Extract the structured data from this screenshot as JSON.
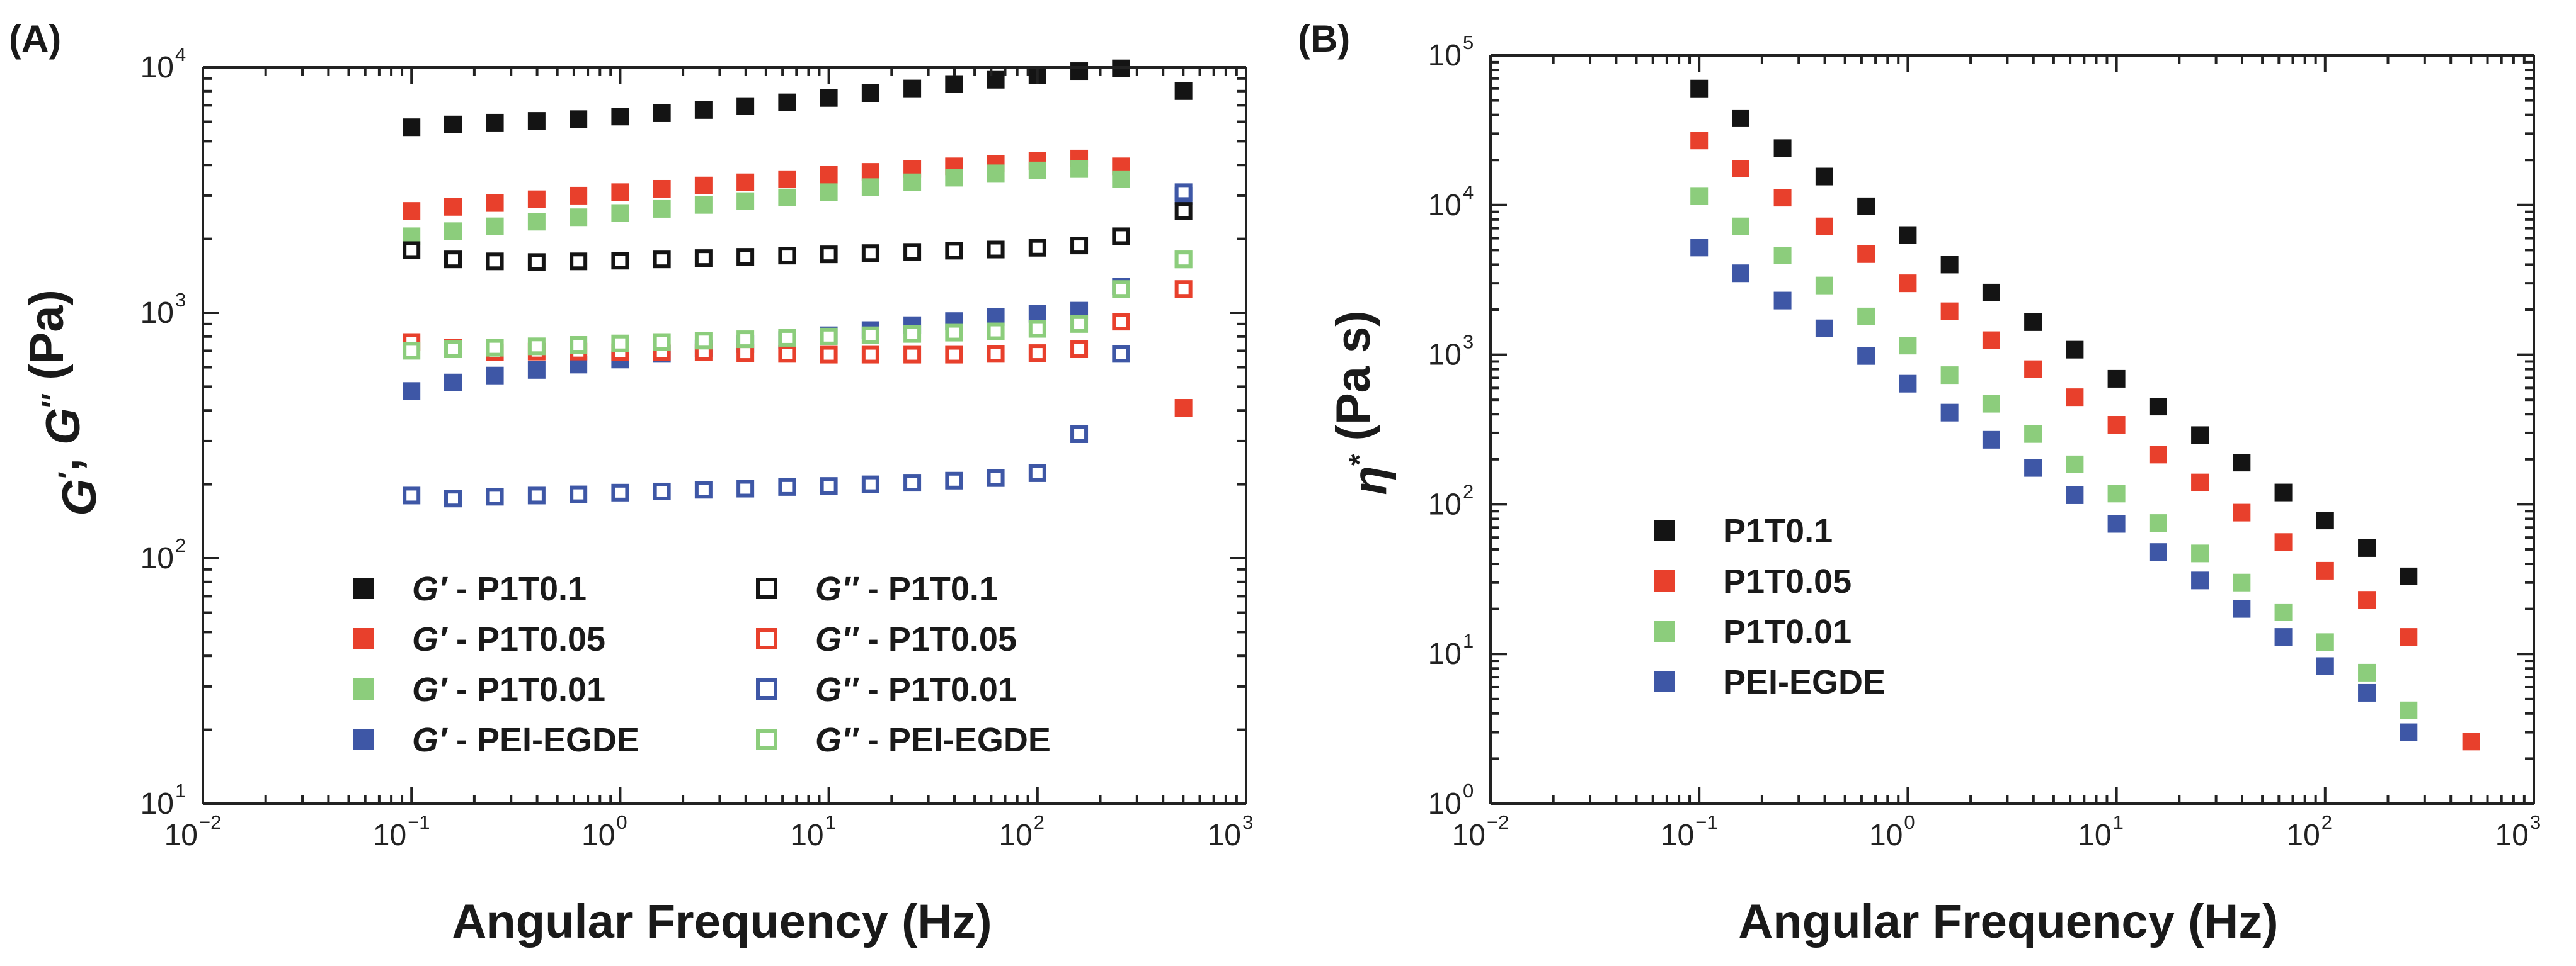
{
  "chart_data": [
    {
      "panel": "(A)",
      "type": "scatter",
      "xscale": "log",
      "yscale": "log",
      "xlim": [
        0.01,
        1000
      ],
      "ylim": [
        10,
        10000
      ],
      "xlabel": "Angular Frequency (Hz)",
      "ylabel": "G′, G″ (Pa)",
      "ylabel_parts": [
        "G",
        "′",
        ", ",
        "G",
        "″",
        " (Pa)"
      ],
      "x_ticks": [
        {
          "value": 0.01,
          "base": "10",
          "exp": "−2"
        },
        {
          "value": 0.1,
          "base": "10",
          "exp": "−1"
        },
        {
          "value": 1,
          "base": "10",
          "exp": "0"
        },
        {
          "value": 10,
          "base": "10",
          "exp": "1"
        },
        {
          "value": 100,
          "base": "10",
          "exp": "2"
        },
        {
          "value": 1000,
          "base": "10",
          "exp": "3"
        }
      ],
      "y_ticks": [
        {
          "value": 10,
          "base": "10",
          "exp": "1"
        },
        {
          "value": 100,
          "base": "10",
          "exp": "2"
        },
        {
          "value": 1000,
          "base": "10",
          "exp": "3"
        },
        {
          "value": 10000,
          "base": "10",
          "exp": "4"
        }
      ],
      "x": [
        0.1,
        0.158,
        0.251,
        0.398,
        0.631,
        1.0,
        1.585,
        2.512,
        3.981,
        6.31,
        10.0,
        15.85,
        25.12,
        39.81,
        63.1,
        100.0,
        158.5,
        251.2,
        501.2
      ],
      "legend": [
        {
          "series": 0,
          "symbol": "G′",
          "label": " - P1T0.1"
        },
        {
          "series": 1,
          "symbol": "G′",
          "label": " - P1T0.05"
        },
        {
          "series": 2,
          "symbol": "G′",
          "label": " - P1T0.01"
        },
        {
          "series": 3,
          "symbol": "G′",
          "label": " - PEI-EGDE"
        },
        {
          "series": 4,
          "symbol": "G″",
          "label": " - P1T0.1"
        },
        {
          "series": 5,
          "symbol": "G″",
          "label": " - P1T0.05"
        },
        {
          "series": 6,
          "symbol": "G″",
          "label": " - P1T0.01"
        },
        {
          "series": 7,
          "symbol": "G″",
          "label": " - PEI-EGDE"
        }
      ],
      "series": [
        {
          "name": "G′ - P1T0.1",
          "color": "#141414",
          "filled": true,
          "values": [
            5700,
            5850,
            5950,
            6050,
            6150,
            6300,
            6500,
            6700,
            6950,
            7200,
            7500,
            7850,
            8200,
            8550,
            8900,
            9300,
            9650,
            9900,
            8000
          ]
        },
        {
          "name": "G′ - P1T0.05",
          "color": "#e8402c",
          "filled": true,
          "values": [
            2600,
            2700,
            2800,
            2900,
            3000,
            3100,
            3200,
            3300,
            3400,
            3500,
            3650,
            3750,
            3850,
            3950,
            4050,
            4150,
            4250,
            3950,
            410
          ]
        },
        {
          "name": "G′ - P1T0.01",
          "color": "#8ccd7c",
          "filled": true,
          "values": [
            2050,
            2150,
            2250,
            2350,
            2450,
            2550,
            2650,
            2750,
            2850,
            2950,
            3100,
            3250,
            3400,
            3550,
            3700,
            3800,
            3850,
            3500,
            1650
          ]
        },
        {
          "name": "G′ - PEI-EGDE",
          "color": "#3e57a6",
          "filled": true,
          "values": [
            480,
            520,
            555,
            585,
            615,
            645,
            680,
            715,
            745,
            775,
            810,
            850,
            890,
            925,
            960,
            990,
            1020,
            1280,
            3000
          ]
        },
        {
          "name": "G″ - P1T0.1",
          "color": "#141414",
          "filled": false,
          "values": [
            1800,
            1650,
            1620,
            1610,
            1620,
            1630,
            1650,
            1670,
            1690,
            1710,
            1730,
            1750,
            1770,
            1790,
            1810,
            1840,
            1880,
            2050,
            2600
          ]
        },
        {
          "name": "G″ - P1T0.05",
          "color": "#e8402c",
          "filled": false,
          "values": [
            760,
            720,
            690,
            695,
            695,
            690,
            690,
            690,
            685,
            680,
            675,
            675,
            675,
            675,
            680,
            685,
            710,
            920,
            1250
          ]
        },
        {
          "name": "G″ - P1T0.01",
          "color": "#3e57a6",
          "filled": false,
          "values": [
            180,
            175,
            178,
            180,
            182,
            185,
            187,
            190,
            192,
            195,
            197,
            200,
            203,
            207,
            212,
            222,
            320,
            680,
            3100
          ]
        },
        {
          "name": "G″ - PEI-EGDE",
          "color": "#8ccd7c",
          "filled": false,
          "values": [
            700,
            710,
            720,
            730,
            740,
            750,
            760,
            770,
            780,
            790,
            800,
            810,
            820,
            830,
            840,
            860,
            900,
            1250,
            1650
          ]
        }
      ]
    },
    {
      "panel": "(B)",
      "type": "scatter",
      "xscale": "log",
      "yscale": "log",
      "xlim": [
        0.01,
        1000
      ],
      "ylim": [
        1,
        100000
      ],
      "xlabel": "Angular Frequency (Hz)",
      "ylabel": "η* (Pa s)",
      "ylabel_parts": [
        "η",
        "*",
        " (Pa s)"
      ],
      "x_ticks": [
        {
          "value": 0.01,
          "base": "10",
          "exp": "−2"
        },
        {
          "value": 0.1,
          "base": "10",
          "exp": "−1"
        },
        {
          "value": 1,
          "base": "10",
          "exp": "0"
        },
        {
          "value": 10,
          "base": "10",
          "exp": "1"
        },
        {
          "value": 100,
          "base": "10",
          "exp": "2"
        },
        {
          "value": 1000,
          "base": "10",
          "exp": "3"
        }
      ],
      "y_ticks": [
        {
          "value": 1,
          "base": "10",
          "exp": "0"
        },
        {
          "value": 10,
          "base": "10",
          "exp": "1"
        },
        {
          "value": 100,
          "base": "10",
          "exp": "2"
        },
        {
          "value": 1000,
          "base": "10",
          "exp": "3"
        },
        {
          "value": 10000,
          "base": "10",
          "exp": "4"
        },
        {
          "value": 100000,
          "base": "10",
          "exp": "5"
        }
      ],
      "x": [
        0.1,
        0.158,
        0.251,
        0.398,
        0.631,
        1.0,
        1.585,
        2.512,
        3.981,
        6.31,
        10.0,
        15.85,
        25.12,
        39.81,
        63.1,
        100.0,
        158.5,
        251.2,
        501.2
      ],
      "legend": [
        {
          "series": 0,
          "label": "P1T0.1"
        },
        {
          "series": 1,
          "label": "P1T0.05"
        },
        {
          "series": 2,
          "label": "P1T0.01"
        },
        {
          "series": 3,
          "label": "PEI-EGDE"
        }
      ],
      "series": [
        {
          "name": "P1T0.1",
          "color": "#141414",
          "filled": true,
          "values": [
            60000,
            38000,
            24000,
            15500,
            9800,
            6300,
            4000,
            2600,
            1650,
            1080,
            690,
            450,
            290,
            190,
            120,
            78,
            51,
            33,
            null
          ]
        },
        {
          "name": "P1T0.05",
          "color": "#e8402c",
          "filled": true,
          "values": [
            27000,
            17500,
            11200,
            7200,
            4700,
            3000,
            1950,
            1250,
            800,
            520,
            340,
            215,
            140,
            88,
            56,
            36,
            23,
            13,
            2.6
          ]
        },
        {
          "name": "P1T0.01",
          "color": "#8ccd7c",
          "filled": true,
          "values": [
            11500,
            7200,
            4600,
            2900,
            1800,
            1150,
            730,
            470,
            295,
            185,
            118,
            75,
            47,
            30,
            19,
            12,
            7.5,
            4.2,
            null
          ]
        },
        {
          "name": "PEI-EGDE",
          "color": "#3e57a6",
          "filled": true,
          "values": [
            5200,
            3500,
            2300,
            1500,
            980,
            640,
            410,
            270,
            175,
            115,
            74,
            48,
            31,
            20,
            13,
            8.3,
            5.5,
            3.0,
            null
          ]
        }
      ]
    }
  ]
}
